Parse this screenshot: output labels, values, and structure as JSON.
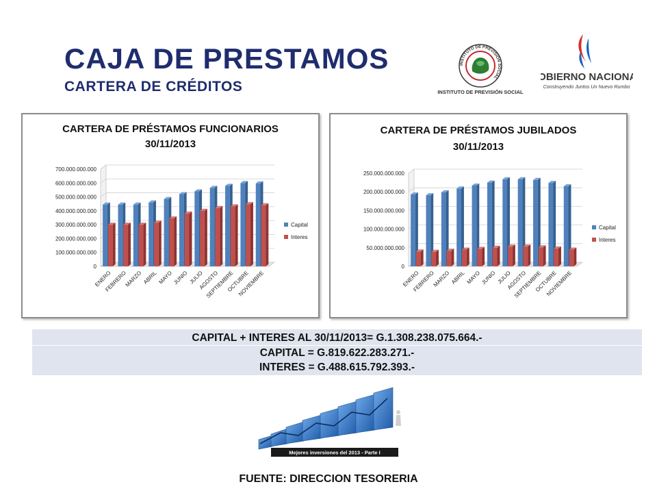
{
  "header": {
    "title": "CAJA DE PRESTAMOS",
    "subtitle": "CARTERA DE CRÉDITOS"
  },
  "logos": {
    "ips": {
      "ring_text": "INSTITUTO DE PREVISIÓN SOCIAL",
      "caption": "INSTITUTO DE PREVISIÓN SOCIAL"
    },
    "gobierno": {
      "name": "GOBIERNO NACIONAL",
      "tagline": "Construyendo Juntos Un Nuevo Rumbo"
    }
  },
  "colors": {
    "title": "#1f2d6e",
    "capital": "#4f81bd",
    "interes": "#c0504d",
    "summary_bg": "#dfe4ef"
  },
  "chart_data": [
    {
      "type": "bar",
      "title": "CARTERA DE PRÉSTAMOS FUNCIONARIOS",
      "subtitle": "30/11/2013",
      "style": "3d-clustered-column",
      "categories": [
        "ENERO",
        "FEBRERO",
        "MARZO",
        "ABRIL",
        "MAYO",
        "JUNIO",
        "JULIO",
        "AGOSTO",
        "SEPTIEMBRE",
        "OCTUBRE",
        "NOVIEMBRE"
      ],
      "series": [
        {
          "name": "Capital",
          "values": [
            445000000000,
            445000000000,
            445000000000,
            460000000000,
            485000000000,
            520000000000,
            540000000000,
            565000000000,
            580000000000,
            600000000000,
            598000000000
          ]
        },
        {
          "name": "Interes",
          "values": [
            300000000000,
            300000000000,
            300000000000,
            315000000000,
            345000000000,
            380000000000,
            400000000000,
            420000000000,
            432000000000,
            448000000000,
            440000000000
          ]
        }
      ],
      "yticks": [
        "0",
        "100.000.000.000",
        "200.000.000.000",
        "300.000.000.000",
        "400.000.000.000",
        "500.000.000.000",
        "600.000.000.000",
        "700.000.000.000"
      ],
      "ylim": [
        0,
        700000000000
      ],
      "legend": "right",
      "grid": true
    },
    {
      "type": "bar",
      "title": "CARTERA DE PRÉSTAMOS JUBILADOS",
      "subtitle": "30/11/2013",
      "style": "3d-clustered-column",
      "categories": [
        "ENERO",
        "FEBRERO",
        "MARZO",
        "ABRIL",
        "MAYO",
        "JUNIO",
        "JULIO",
        "AGOSTO",
        "SEPTIEMBRE",
        "OCTUBRE",
        "NOVIEMBRE"
      ],
      "series": [
        {
          "name": "Capital",
          "values": [
            193000000000,
            191000000000,
            199000000000,
            209000000000,
            217000000000,
            225000000000,
            234000000000,
            234000000000,
            232000000000,
            224000000000,
            215000000000
          ]
        },
        {
          "name": "Interes",
          "values": [
            40000000000,
            39000000000,
            42000000000,
            45000000000,
            47000000000,
            50000000000,
            53000000000,
            53000000000,
            51000000000,
            48000000000,
            45000000000
          ]
        }
      ],
      "yticks": [
        "0",
        "50.000.000.000",
        "100.000.000.000",
        "150.000.000.000",
        "200.000.000.000",
        "250.000.000.000"
      ],
      "ylim": [
        0,
        250000000000
      ],
      "legend": "right",
      "grid": true
    }
  ],
  "summary": {
    "line1": "CAPITAL + INTERES AL 30/11/2013= G.1.308.238.075.664.-",
    "line2": "CAPITAL = G.819.622.283.271.-",
    "line3": "INTERES = G.488.615.792.393.-"
  },
  "banner": {
    "caption": "Mejores inversiones del 2013 - Parte I"
  },
  "footer": {
    "source": "FUENTE: DIRECCION TESORERIA"
  }
}
